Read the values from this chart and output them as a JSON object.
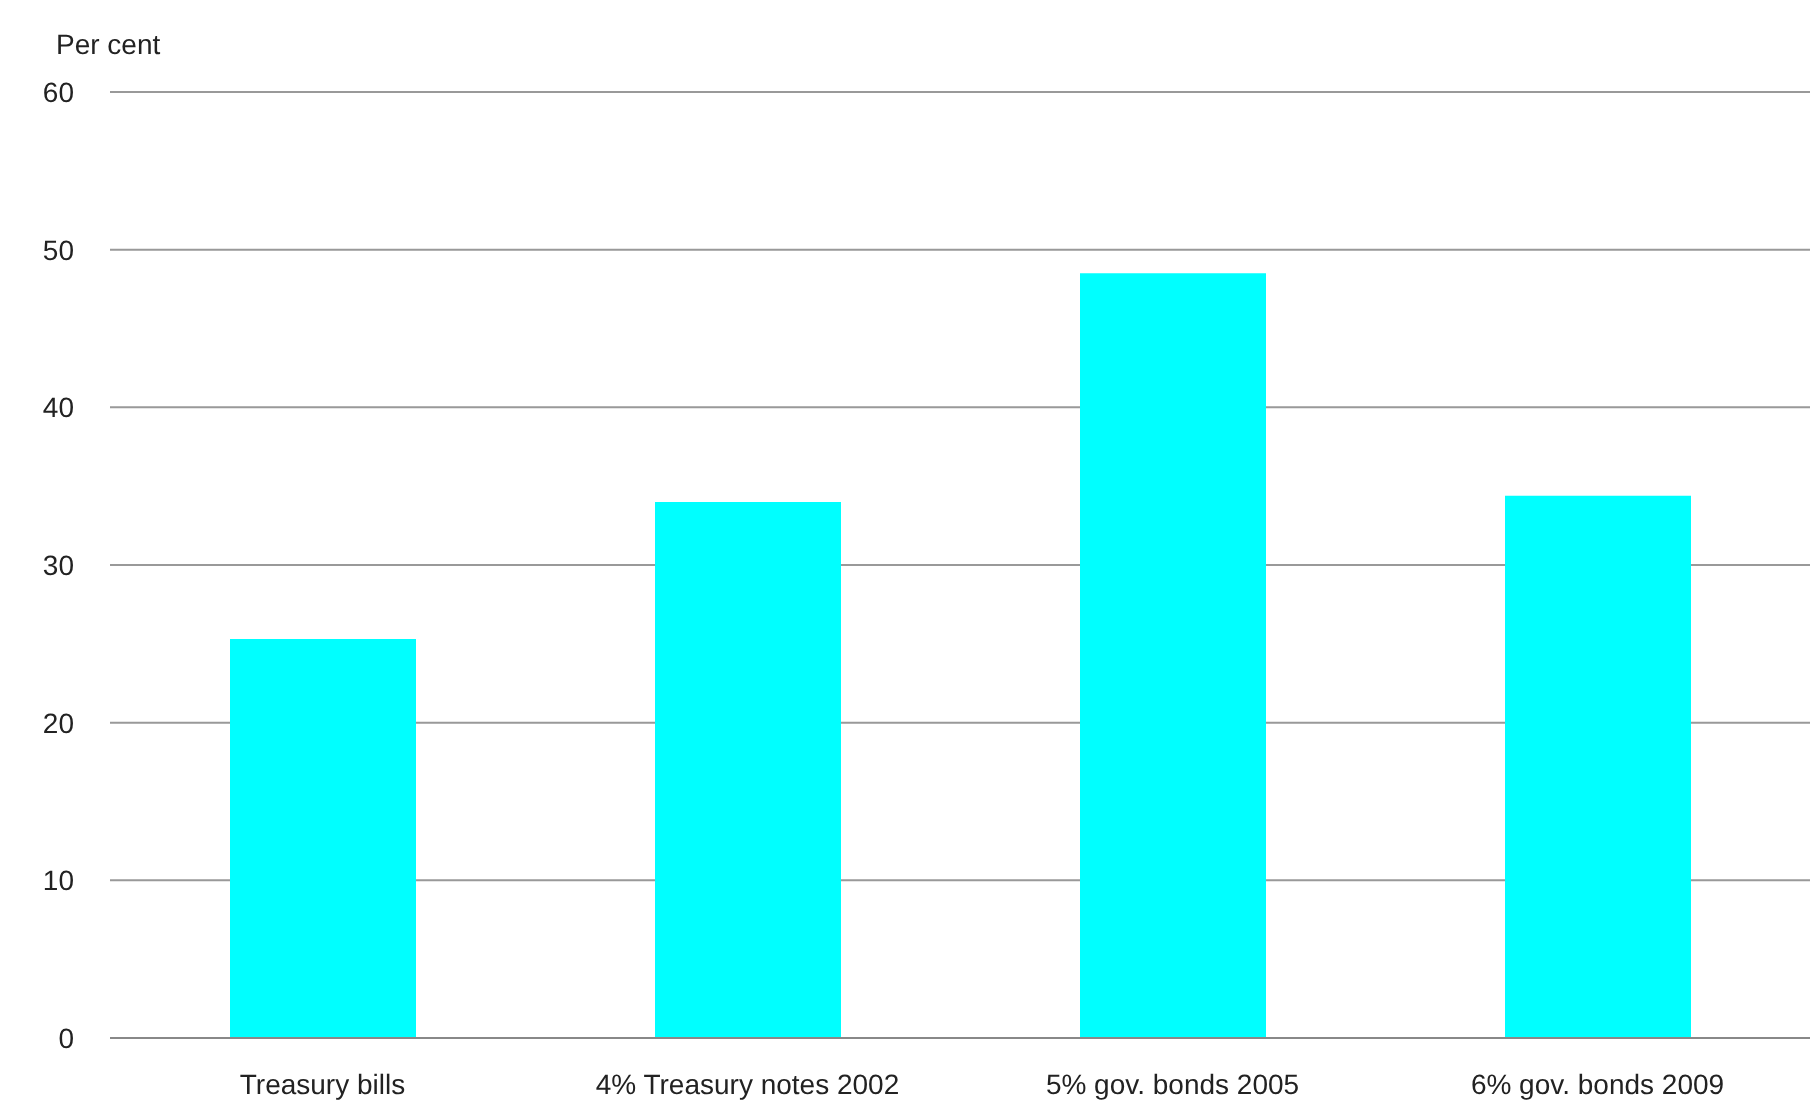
{
  "chart_data": {
    "type": "bar",
    "ylabel": "Per cent",
    "categories": [
      "Treasury bills",
      "4% Treasury notes 2002",
      "5% gov. bonds 2005",
      "6% gov. bonds 2009"
    ],
    "values": [
      25.3,
      34,
      48.5,
      34.4
    ],
    "color": "#00ffff",
    "ylim": [
      0,
      60
    ],
    "yticks": [
      0,
      10,
      20,
      30,
      40,
      50,
      60
    ],
    "grid": "y"
  }
}
